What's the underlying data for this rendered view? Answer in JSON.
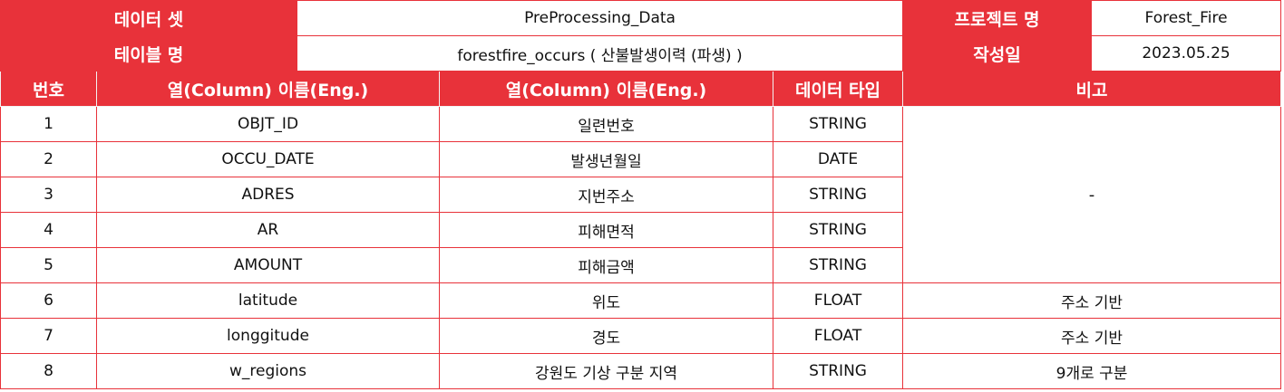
{
  "meta": {
    "dataset_label": "데이터 셋",
    "dataset_value": "PreProcessing_Data",
    "project_label": "프로젝트 명",
    "project_value": "Forest_Fire",
    "table_label": "테이블 명",
    "table_value": "forestfire_occurs ( 산불발생이력 (파생) )",
    "date_label": "작성일",
    "date_value": "2023.05.25"
  },
  "columns": {
    "no": "번호",
    "col_eng": "열(Column) 이름(Eng.)",
    "col_kor": "열(Column) 이름(Eng.)",
    "type": "데이터 타입",
    "remark": "비고"
  },
  "rows": [
    {
      "no": "1",
      "eng": "OBJT_ID",
      "kor": "일련번호",
      "type": "STRING"
    },
    {
      "no": "2",
      "eng": "OCCU_DATE",
      "kor": "발생년월일",
      "type": "DATE"
    },
    {
      "no": "3",
      "eng": "ADRES",
      "kor": "지번주소",
      "type": "STRING"
    },
    {
      "no": "4",
      "eng": "AR",
      "kor": "피해면적",
      "type": "STRING"
    },
    {
      "no": "5",
      "eng": "AMOUNT",
      "kor": "피해금액",
      "type": "STRING"
    },
    {
      "no": "6",
      "eng": "latitude",
      "kor": "위도",
      "type": "FLOAT",
      "remark": "주소 기반"
    },
    {
      "no": "7",
      "eng": "longgitude",
      "kor": "경도",
      "type": "FLOAT",
      "remark": "주소 기반"
    },
    {
      "no": "8",
      "eng": "w_regions",
      "kor": "강원도 기상 구분 지역",
      "type": "STRING",
      "remark": "9개로 구분"
    }
  ],
  "merged_remark": "-",
  "colors": {
    "accent": "#e8323a",
    "text": "#111111",
    "on_accent": "#ffffff"
  }
}
